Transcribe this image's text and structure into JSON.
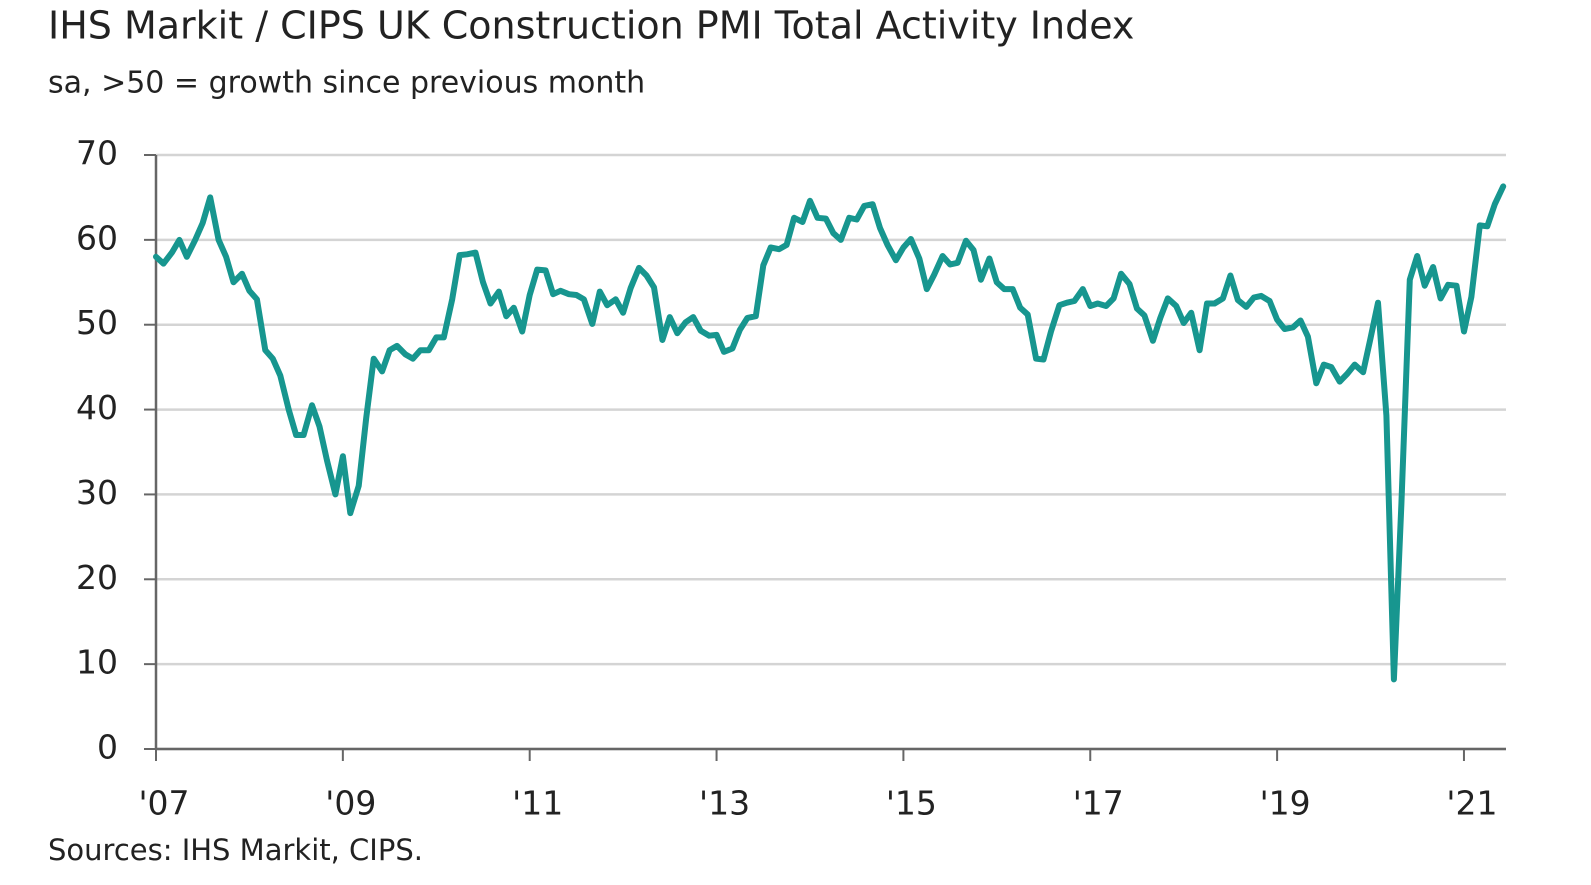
{
  "chart_data": {
    "type": "line",
    "title": "IHS Markit / CIPS UK Construction PMI Total Activity Index",
    "subtitle": "sa, >50 = growth since previous month",
    "source": "Sources: IHS Markit, CIPS.",
    "x": [
      2007.0,
      2007.08,
      2007.17,
      2007.25,
      2007.33,
      2007.42,
      2007.5,
      2007.58,
      2007.67,
      2007.75,
      2007.83,
      2007.92,
      2008.0,
      2008.08,
      2008.17,
      2008.25,
      2008.33,
      2008.42,
      2008.5,
      2008.58,
      2008.67,
      2008.75,
      2008.83,
      2008.92,
      2009.0,
      2009.08,
      2009.17,
      2009.25,
      2009.33,
      2009.42,
      2009.5,
      2009.58,
      2009.67,
      2009.75,
      2009.83,
      2009.92,
      2010.0,
      2010.08,
      2010.17,
      2010.25,
      2010.33,
      2010.42,
      2010.5,
      2010.58,
      2010.67,
      2010.75,
      2010.83,
      2010.92,
      2011.0,
      2011.08,
      2011.17,
      2011.25,
      2011.33,
      2011.42,
      2011.5,
      2011.58,
      2011.67,
      2011.75,
      2011.83,
      2011.92,
      2012.0,
      2012.08,
      2012.17,
      2012.25,
      2012.33,
      2012.42,
      2012.5,
      2012.58,
      2012.67,
      2012.75,
      2012.83,
      2012.92,
      2013.0,
      2013.08,
      2013.17,
      2013.25,
      2013.33,
      2013.42,
      2013.5,
      2013.58,
      2013.67,
      2013.75,
      2013.83,
      2013.92,
      2014.0,
      2014.08,
      2014.17,
      2014.25,
      2014.33,
      2014.42,
      2014.5,
      2014.58,
      2014.67,
      2014.75,
      2014.83,
      2014.92,
      2015.0,
      2015.08,
      2015.17,
      2015.25,
      2015.33,
      2015.42,
      2015.5,
      2015.58,
      2015.67,
      2015.75,
      2015.83,
      2015.92,
      2016.0,
      2016.08,
      2016.17,
      2016.25,
      2016.33,
      2016.42,
      2016.5,
      2016.58,
      2016.67,
      2016.75,
      2016.83,
      2016.92,
      2017.0,
      2017.08,
      2017.17,
      2017.25,
      2017.33,
      2017.42,
      2017.5,
      2017.58,
      2017.67,
      2017.75,
      2017.83,
      2017.92,
      2018.0,
      2018.08,
      2018.17,
      2018.25,
      2018.33,
      2018.42,
      2018.5,
      2018.58,
      2018.67,
      2018.75,
      2018.83,
      2018.92,
      2019.0,
      2019.08,
      2019.17,
      2019.25,
      2019.33,
      2019.42,
      2019.5,
      2019.58,
      2019.67,
      2019.75,
      2019.83,
      2019.92,
      2020.0,
      2020.08,
      2020.17,
      2020.25,
      2020.33,
      2020.42,
      2020.5,
      2020.58,
      2020.67,
      2020.75,
      2020.83,
      2020.92,
      2021.0,
      2021.08,
      2021.17,
      2021.25,
      2021.33,
      2021.42
    ],
    "series": [
      {
        "name": "Total Activity Index",
        "color": "#17968f",
        "values": [
          58.0,
          57.2,
          58.5,
          60.0,
          58.0,
          60.0,
          62.0,
          65.0,
          60.0,
          58.0,
          55.0,
          56.0,
          54.0,
          53.0,
          47.0,
          46.0,
          44.0,
          40.0,
          37.0,
          37.0,
          40.5,
          38.0,
          34.0,
          30.0,
          34.5,
          27.8,
          31.0,
          39.0,
          46.0,
          44.5,
          47.0,
          47.5,
          46.5,
          46.0,
          47.0,
          47.0,
          48.5,
          48.5,
          53.0,
          58.2,
          58.3,
          58.5,
          55.0,
          52.5,
          53.9,
          51.0,
          52.0,
          49.2,
          53.5,
          56.5,
          56.4,
          53.6,
          54.0,
          53.6,
          53.5,
          53.0,
          50.1,
          53.9,
          52.3,
          53.0,
          51.4,
          54.3,
          56.7,
          55.8,
          54.4,
          48.2,
          50.9,
          49.0,
          50.3,
          50.9,
          49.3,
          48.7,
          48.8,
          46.8,
          47.2,
          49.4,
          50.8,
          51.0,
          57.0,
          59.1,
          58.9,
          59.4,
          62.6,
          62.1,
          64.6,
          62.6,
          62.5,
          60.8,
          60.0,
          62.6,
          62.4,
          64.0,
          64.2,
          61.4,
          59.4,
          57.6,
          59.1,
          60.1,
          57.8,
          54.2,
          55.9,
          58.1,
          57.1,
          57.3,
          59.9,
          58.8,
          55.3,
          57.8,
          55.0,
          54.2,
          54.2,
          52.0,
          51.2,
          46.0,
          45.9,
          49.2,
          52.3,
          52.6,
          52.8,
          54.2,
          52.2,
          52.5,
          52.2,
          53.1,
          56.0,
          54.8,
          51.9,
          51.1,
          48.1,
          50.8,
          53.1,
          52.2,
          50.2,
          51.4,
          47.0,
          52.5,
          52.5,
          53.1,
          55.8,
          52.9,
          52.1,
          53.2,
          53.4,
          52.8,
          50.6,
          49.5,
          49.7,
          50.5,
          48.6,
          43.1,
          45.3,
          45.0,
          43.3,
          44.2,
          45.3,
          44.4,
          48.4,
          52.6,
          39.3,
          8.2,
          28.9,
          55.3,
          58.1,
          54.6,
          56.8,
          53.1,
          54.7,
          54.6,
          49.2,
          53.3,
          61.7,
          61.6,
          64.2,
          66.3
        ]
      }
    ],
    "xlim": [
      2007,
      2021.45
    ],
    "xticks": [
      {
        "value": 2007,
        "label": "'07"
      },
      {
        "value": 2009,
        "label": "'09"
      },
      {
        "value": 2011,
        "label": "'11"
      },
      {
        "value": 2013,
        "label": "'13"
      },
      {
        "value": 2015,
        "label": "'15"
      },
      {
        "value": 2017,
        "label": "'17"
      },
      {
        "value": 2019,
        "label": "'19"
      },
      {
        "value": 2021,
        "label": "'21"
      }
    ],
    "ylim": [
      0,
      70
    ],
    "yticks": [
      0,
      10,
      20,
      30,
      40,
      50,
      60,
      70
    ],
    "grid": true
  }
}
